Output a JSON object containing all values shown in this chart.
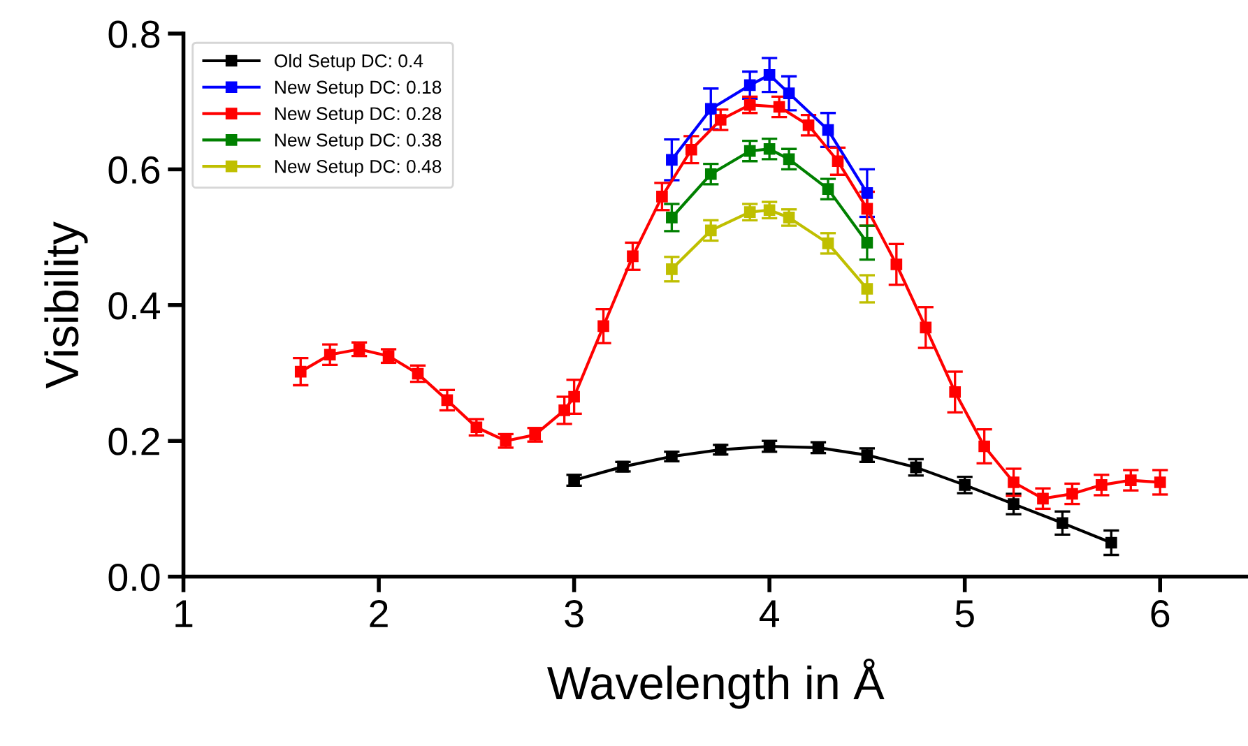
{
  "chart_data": {
    "type": "line",
    "xlabel": "Wavelength in Å",
    "ylabel": "Visibility",
    "xlim": [
      1,
      6.45
    ],
    "ylim": [
      0,
      0.8
    ],
    "xticks": [
      1,
      2,
      3,
      4,
      5,
      6
    ],
    "yticks": [
      {
        "value": 0,
        "label": "0.0"
      },
      0.2,
      0.4,
      0.6,
      0.8
    ],
    "grid": false,
    "legend": "top left",
    "marker": "square",
    "line_style": "solid",
    "series": [
      {
        "name": "Old Setup DC: 0.4",
        "color": "#000000",
        "x": [
          3.0,
          3.25,
          3.5,
          3.75,
          4.0,
          4.25,
          4.5,
          4.75,
          5.0,
          5.25,
          5.5,
          5.75
        ],
        "values": [
          0.142,
          0.162,
          0.177,
          0.187,
          0.192,
          0.19,
          0.179,
          0.161,
          0.135,
          0.107,
          0.079,
          0.05
        ],
        "errors": [
          0.008,
          0.007,
          0.007,
          0.007,
          0.008,
          0.008,
          0.01,
          0.012,
          0.012,
          0.015,
          0.017,
          0.018
        ]
      },
      {
        "name": "New Setup DC: 0.18",
        "color": "#0000ff",
        "x": [
          3.5,
          3.7,
          3.9,
          4.0,
          4.1,
          4.3,
          4.5
        ],
        "values": [
          0.614,
          0.689,
          0.724,
          0.739,
          0.712,
          0.658,
          0.565
        ],
        "errors": [
          0.03,
          0.03,
          0.02,
          0.025,
          0.025,
          0.025,
          0.035
        ]
      },
      {
        "name": "New Setup DC: 0.28",
        "color": "#ff0000",
        "x": [
          1.6,
          1.75,
          1.9,
          2.05,
          2.2,
          2.35,
          2.5,
          2.65,
          2.8,
          2.95,
          3.0,
          3.15,
          3.3,
          3.45,
          3.6,
          3.75,
          3.9,
          4.05,
          4.2,
          4.35,
          4.5,
          4.65,
          4.8,
          4.95,
          5.1,
          5.25,
          5.4,
          5.55,
          5.7,
          5.85,
          6.0
        ],
        "values": [
          0.302,
          0.327,
          0.335,
          0.325,
          0.299,
          0.26,
          0.22,
          0.2,
          0.209,
          0.245,
          0.265,
          0.369,
          0.472,
          0.56,
          0.629,
          0.673,
          0.695,
          0.692,
          0.665,
          0.612,
          0.542,
          0.46,
          0.367,
          0.272,
          0.192,
          0.139,
          0.115,
          0.122,
          0.135,
          0.142,
          0.139
        ],
        "errors": [
          0.02,
          0.015,
          0.01,
          0.01,
          0.012,
          0.015,
          0.012,
          0.01,
          0.01,
          0.02,
          0.025,
          0.025,
          0.02,
          0.02,
          0.02,
          0.015,
          0.012,
          0.015,
          0.015,
          0.02,
          0.025,
          0.03,
          0.03,
          0.03,
          0.025,
          0.02,
          0.015,
          0.015,
          0.015,
          0.015,
          0.018
        ]
      },
      {
        "name": "New Setup DC: 0.38",
        "color": "#008000",
        "x": [
          3.5,
          3.7,
          3.9,
          4.0,
          4.1,
          4.3,
          4.5
        ],
        "values": [
          0.529,
          0.593,
          0.627,
          0.63,
          0.615,
          0.571,
          0.492
        ],
        "errors": [
          0.02,
          0.015,
          0.015,
          0.015,
          0.015,
          0.015,
          0.025
        ]
      },
      {
        "name": "New Setup DC: 0.48",
        "color": "#bfbf00",
        "x": [
          3.5,
          3.7,
          3.9,
          4.0,
          4.1,
          4.3,
          4.5
        ],
        "values": [
          0.453,
          0.51,
          0.537,
          0.54,
          0.529,
          0.491,
          0.424
        ],
        "errors": [
          0.018,
          0.015,
          0.012,
          0.012,
          0.012,
          0.015,
          0.02
        ]
      }
    ]
  }
}
